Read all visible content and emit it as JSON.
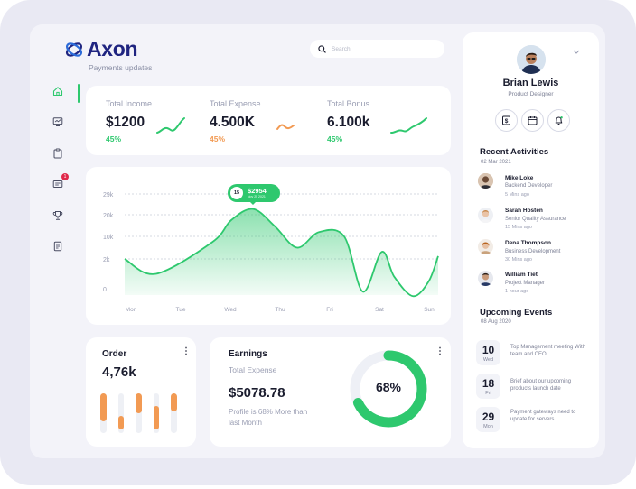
{
  "brand": {
    "name": "Axon",
    "subtitle": "Payments updates"
  },
  "search": {
    "placeholder": "Search"
  },
  "sidebar": {
    "items": [
      {
        "name": "home-icon",
        "active": true
      },
      {
        "name": "monitor-icon",
        "active": false
      },
      {
        "name": "clipboard-icon",
        "active": false
      },
      {
        "name": "message-icon",
        "active": false,
        "badge": "1"
      },
      {
        "name": "trophy-icon",
        "active": false
      },
      {
        "name": "document-icon",
        "active": false
      }
    ]
  },
  "stats": [
    {
      "label": "Total Income",
      "value": "$1200",
      "pct": "45%",
      "color": "#2ec86e"
    },
    {
      "label": "Total Expense",
      "value": "4.500K",
      "pct": "45%",
      "color": "#f29a53"
    },
    {
      "label": "Total Bonus",
      "value": "6.100k",
      "pct": "45%",
      "color": "#2ec86e"
    }
  ],
  "main_chart": {
    "tooltip": {
      "day": "15",
      "value": "$2954",
      "date": "Nov 25 2021"
    }
  },
  "chart_data": {
    "type": "area",
    "categories": [
      "Mon",
      "Tue",
      "Wed",
      "Thu",
      "Fri",
      "Sat",
      "Sun"
    ],
    "y_tick_labels": [
      "29k",
      "20k",
      "10k",
      "2k",
      "0"
    ],
    "series": [
      {
        "values": [
          [
            0.0,
            2.0
          ],
          [
            0.1,
            1.0
          ],
          [
            0.28,
            8.0
          ],
          [
            0.34,
            17.5
          ],
          [
            0.41,
            22.5
          ],
          [
            0.48,
            14.5
          ],
          [
            0.55,
            6.0
          ],
          [
            0.62,
            12.0
          ],
          [
            0.7,
            10.0
          ],
          [
            0.76,
            -0.2
          ],
          [
            0.82,
            4.5
          ],
          [
            0.86,
            0.8
          ],
          [
            0.92,
            -0.5
          ],
          [
            0.97,
            0.5
          ],
          [
            1.0,
            3.0
          ]
        ]
      }
    ],
    "color": "#2ec86e",
    "grid": true,
    "ylim": [
      -1.5,
      29
    ]
  },
  "order": {
    "title": "Order",
    "value": "4,76k",
    "bars": [
      {
        "fill": 0.7,
        "color": "#f29a53"
      },
      {
        "fill": 0.35,
        "color": "#f29a53"
      },
      {
        "fill": 0.5,
        "color": "#f29a53"
      },
      {
        "fill": 0.6,
        "color": "#f29a53"
      },
      {
        "fill": 0.45,
        "color": "#f29a53"
      }
    ]
  },
  "earnings": {
    "title": "Earnings",
    "subtitle": "Total Expense",
    "value": "$5078.78",
    "note": "Profile is 68% More than last Month",
    "gauge_pct": 68,
    "gauge_label": "68%",
    "gauge_color": "#2ec86e"
  },
  "profile": {
    "name": "Brian Lewis",
    "role": "Product Designer"
  },
  "activities": {
    "title": "Recent Activities",
    "date": "02 Mar 2021",
    "items": [
      {
        "name": "Mike Loke",
        "role": "Backend Developer",
        "time": "5 Mins ago"
      },
      {
        "name": "Sarah Hosten",
        "role": "Senior Quality Assurance",
        "time": "15 Mins ago"
      },
      {
        "name": "Dena Thompson",
        "role": "Business Development",
        "time": "30 Mins ago"
      },
      {
        "name": "William Tiet",
        "role": "Project Manager",
        "time": "1 hour ago"
      }
    ]
  },
  "events": {
    "title": "Upcoming Events",
    "date": "08 Aug 2020",
    "items": [
      {
        "day": "10",
        "weekday": "Wed",
        "text": "Top Management meeting With team and CEO"
      },
      {
        "day": "18",
        "weekday": "Fri",
        "text": "Brief about our upcoming products launch date"
      },
      {
        "day": "29",
        "weekday": "Mon",
        "text": "Payment gateways need to update for servers"
      }
    ]
  }
}
